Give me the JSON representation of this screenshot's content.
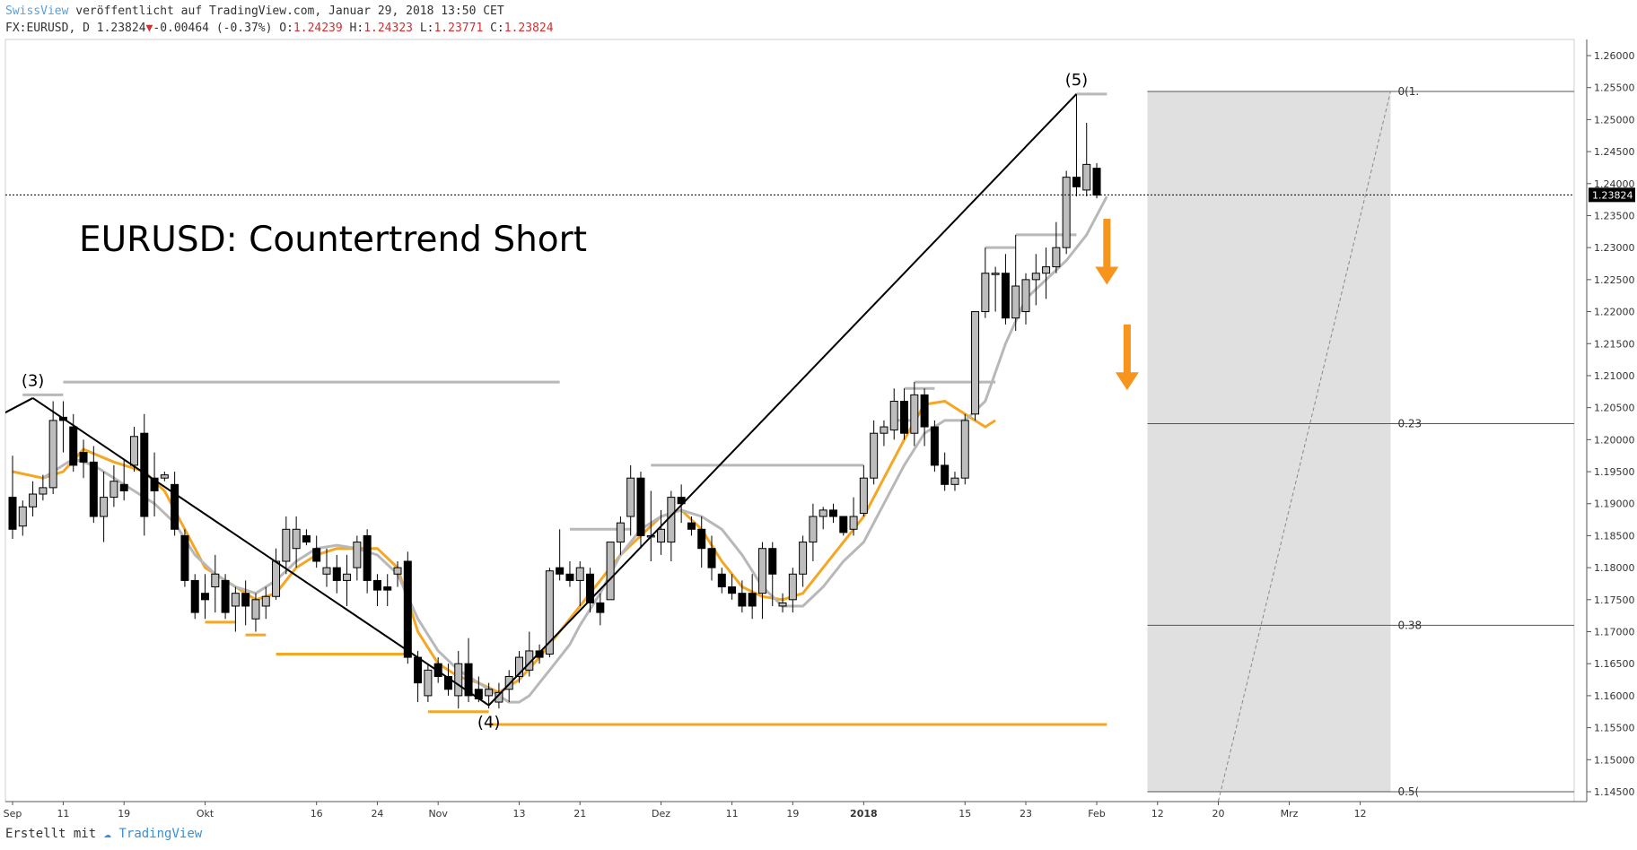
{
  "header": {
    "brand": "SwissView",
    "published": " veröffentlicht auf TradingView.com, Januar 29, 2018 13:50 CET",
    "symbol": "FX:EURUSD, D",
    "last": "1.23824",
    "change": "-0.00464 (-0.37%)",
    "open_label": "O:",
    "open": "1.24239",
    "high_label": "H:",
    "high": "1.24323",
    "low_label": "L:",
    "low": "1.23771",
    "close_label": "C:",
    "close": "1.23824"
  },
  "footer": {
    "created_with": "Erstellt mit",
    "tv_name": "TradingView"
  },
  "colors": {
    "up_candle": "#bdbdbd",
    "down_candle": "#000000",
    "orange_ma": "#f5a623",
    "gray_ma": "#b8b8b8",
    "arrow": "#f7941d",
    "shade": "#e0e0e0"
  },
  "chart_data": {
    "type": "candlestick",
    "title": "EURUSD: Countertrend Short",
    "ylim": [
      1.1435,
      1.261
    ],
    "y_ticks": [
      "1.26000",
      "1.25500",
      "1.25000",
      "1.24500",
      "1.24000",
      "1.23500",
      "1.23000",
      "1.22500",
      "1.22000",
      "1.21500",
      "1.21000",
      "1.20500",
      "1.20000",
      "1.19500",
      "1.19000",
      "1.18500",
      "1.18000",
      "1.17500",
      "1.17000",
      "1.16500",
      "1.16000",
      "1.15500",
      "1.15000",
      "1.14500"
    ],
    "x_labels": [
      {
        "label": "Sep",
        "bar": 0
      },
      {
        "label": "11",
        "bar": 5
      },
      {
        "label": "19",
        "bar": 11
      },
      {
        "label": "Okt",
        "bar": 19
      },
      {
        "label": "16",
        "bar": 30
      },
      {
        "label": "24",
        "bar": 36
      },
      {
        "label": "Nov",
        "bar": 42
      },
      {
        "label": "13",
        "bar": 50
      },
      {
        "label": "21",
        "bar": 56
      },
      {
        "label": "Dez",
        "bar": 64
      },
      {
        "label": "11",
        "bar": 71
      },
      {
        "label": "19",
        "bar": 77
      },
      {
        "label": "2018",
        "bar": 84
      },
      {
        "label": "15",
        "bar": 94
      },
      {
        "label": "23",
        "bar": 100
      },
      {
        "label": "Feb",
        "bar": 107
      },
      {
        "label": "12",
        "bar": 113
      },
      {
        "label": "20",
        "bar": 119
      },
      {
        "label": "Mrz",
        "bar": 126
      },
      {
        "label": "12",
        "bar": 133
      }
    ],
    "ohlc": [
      [
        1.191,
        1.1975,
        1.1845,
        1.186
      ],
      [
        1.1865,
        1.1905,
        1.185,
        1.1895
      ],
      [
        1.1895,
        1.1935,
        1.188,
        1.1915
      ],
      [
        1.1915,
        1.1945,
        1.1905,
        1.1925
      ],
      [
        1.1925,
        1.206,
        1.1915,
        1.203
      ],
      [
        1.2035,
        1.206,
        1.198,
        1.203
      ],
      [
        1.202,
        1.204,
        1.195,
        1.196
      ],
      [
        1.198,
        1.2,
        1.194,
        1.1965
      ],
      [
        1.1965,
        1.199,
        1.187,
        1.188
      ],
      [
        1.188,
        1.195,
        1.184,
        1.191
      ],
      [
        1.191,
        1.196,
        1.1895,
        1.1935
      ],
      [
        1.193,
        1.197,
        1.1905,
        1.192
      ],
      [
        1.196,
        1.202,
        1.195,
        1.2005
      ],
      [
        1.201,
        1.204,
        1.185,
        1.188
      ],
      [
        1.194,
        1.198,
        1.188,
        1.192
      ],
      [
        1.194,
        1.195,
        1.1935,
        1.1945
      ],
      [
        1.193,
        1.195,
        1.185,
        1.186
      ],
      [
        1.185,
        1.186,
        1.177,
        1.178
      ],
      [
        1.178,
        1.179,
        1.172,
        1.173
      ],
      [
        1.176,
        1.179,
        1.172,
        1.175
      ],
      [
        1.177,
        1.182,
        1.173,
        1.179
      ],
      [
        1.178,
        1.179,
        1.172,
        1.173
      ],
      [
        1.174,
        1.177,
        1.17,
        1.176
      ],
      [
        1.176,
        1.178,
        1.171,
        1.174
      ],
      [
        1.172,
        1.176,
        1.17,
        1.175
      ],
      [
        1.174,
        1.177,
        1.172,
        1.1755
      ],
      [
        1.1755,
        1.183,
        1.175,
        1.181
      ],
      [
        1.181,
        1.188,
        1.179,
        1.186
      ],
      [
        1.183,
        1.188,
        1.18,
        1.186
      ],
      [
        1.185,
        1.186,
        1.1835,
        1.184
      ],
      [
        1.183,
        1.185,
        1.18,
        1.181
      ],
      [
        1.179,
        1.183,
        1.177,
        1.18
      ],
      [
        1.18,
        1.182,
        1.176,
        1.178
      ],
      [
        1.178,
        1.182,
        1.174,
        1.179
      ],
      [
        1.18,
        1.185,
        1.178,
        1.184
      ],
      [
        1.185,
        1.186,
        1.176,
        1.178
      ],
      [
        1.178,
        1.179,
        1.174,
        1.1765
      ],
      [
        1.177,
        1.179,
        1.174,
        1.1765
      ],
      [
        1.179,
        1.181,
        1.177,
        1.18
      ],
      [
        1.181,
        1.1825,
        1.165,
        1.166
      ],
      [
        1.166,
        1.167,
        1.159,
        1.162
      ],
      [
        1.16,
        1.165,
        1.159,
        1.164
      ],
      [
        1.165,
        1.166,
        1.162,
        1.163
      ],
      [
        1.163,
        1.165,
        1.16,
        1.161
      ],
      [
        1.16,
        1.167,
        1.158,
        1.165
      ],
      [
        1.165,
        1.169,
        1.159,
        1.16
      ],
      [
        1.161,
        1.163,
        1.159,
        1.1595
      ],
      [
        1.16,
        1.162,
        1.158,
        1.161
      ],
      [
        1.159,
        1.162,
        1.158,
        1.1605
      ],
      [
        1.161,
        1.164,
        1.159,
        1.163
      ],
      [
        1.163,
        1.167,
        1.162,
        1.166
      ],
      [
        1.164,
        1.17,
        1.163,
        1.167
      ],
      [
        1.167,
        1.168,
        1.165,
        1.166
      ],
      [
        1.1665,
        1.18,
        1.166,
        1.1795
      ],
      [
        1.18,
        1.186,
        1.178,
        1.179
      ],
      [
        1.179,
        1.181,
        1.177,
        1.178
      ],
      [
        1.178,
        1.181,
        1.174,
        1.18
      ],
      [
        1.179,
        1.18,
        1.173,
        1.1745
      ],
      [
        1.1745,
        1.176,
        1.171,
        1.173
      ],
      [
        1.175,
        1.184,
        1.175,
        1.184
      ],
      [
        1.184,
        1.188,
        1.182,
        1.187
      ],
      [
        1.188,
        1.196,
        1.185,
        1.194
      ],
      [
        1.194,
        1.195,
        1.183,
        1.185
      ],
      [
        1.185,
        1.192,
        1.181,
        1.185
      ],
      [
        1.184,
        1.189,
        1.182,
        1.186
      ],
      [
        1.184,
        1.192,
        1.181,
        1.191
      ],
      [
        1.191,
        1.193,
        1.187,
        1.19
      ],
      [
        1.187,
        1.188,
        1.185,
        1.186
      ],
      [
        1.186,
        1.188,
        1.18,
        1.183
      ],
      [
        1.183,
        1.185,
        1.178,
        1.18
      ],
      [
        1.179,
        1.18,
        1.176,
        1.177
      ],
      [
        1.177,
        1.179,
        1.175,
        1.176
      ],
      [
        1.176,
        1.178,
        1.173,
        1.174
      ],
      [
        1.176,
        1.179,
        1.172,
        1.174
      ],
      [
        1.176,
        1.184,
        1.172,
        1.183
      ],
      [
        1.183,
        1.184,
        1.174,
        1.179
      ],
      [
        1.174,
        1.176,
        1.173,
        1.1745
      ],
      [
        1.175,
        1.18,
        1.173,
        1.179
      ],
      [
        1.179,
        1.185,
        1.177,
        1.184
      ],
      [
        1.184,
        1.19,
        1.181,
        1.188
      ],
      [
        1.188,
        1.1895,
        1.186,
        1.189
      ],
      [
        1.189,
        1.19,
        1.187,
        1.188
      ],
      [
        1.188,
        1.188,
        1.185,
        1.1855
      ],
      [
        1.186,
        1.191,
        1.185,
        1.188
      ],
      [
        1.1885,
        1.196,
        1.188,
        1.194
      ],
      [
        1.194,
        1.203,
        1.193,
        1.201
      ],
      [
        1.201,
        1.203,
        1.199,
        1.202
      ],
      [
        1.2015,
        1.208,
        1.2,
        1.206
      ],
      [
        1.206,
        1.208,
        1.2,
        1.201
      ],
      [
        1.201,
        1.209,
        1.199,
        1.207
      ],
      [
        1.207,
        1.208,
        1.199,
        1.202
      ],
      [
        1.202,
        1.203,
        1.195,
        1.196
      ],
      [
        1.196,
        1.198,
        1.192,
        1.193
      ],
      [
        1.193,
        1.195,
        1.192,
        1.194
      ],
      [
        1.194,
        1.204,
        1.193,
        1.203
      ],
      [
        1.204,
        1.22,
        1.203,
        1.22
      ],
      [
        1.22,
        1.23,
        1.219,
        1.226
      ],
      [
        1.226,
        1.227,
        1.22,
        1.226
      ],
      [
        1.226,
        1.229,
        1.218,
        1.219
      ],
      [
        1.219,
        1.232,
        1.217,
        1.224
      ],
      [
        1.22,
        1.226,
        1.218,
        1.225
      ],
      [
        1.225,
        1.229,
        1.221,
        1.226
      ],
      [
        1.226,
        1.23,
        1.222,
        1.227
      ],
      [
        1.227,
        1.234,
        1.226,
        1.23
      ],
      [
        1.23,
        1.242,
        1.229,
        1.241
      ],
      [
        1.241,
        1.254,
        1.238,
        1.2395
      ],
      [
        1.239,
        1.2495,
        1.238,
        1.243
      ],
      [
        1.2424,
        1.2432,
        1.2377,
        1.2382
      ]
    ],
    "orange_ma": [
      [
        0,
        1.195
      ],
      [
        3,
        1.194
      ],
      [
        5,
        1.195
      ],
      [
        7,
        1.1985
      ],
      [
        10,
        1.1965
      ],
      [
        13,
        1.195
      ],
      [
        15,
        1.192
      ],
      [
        17,
        1.186
      ],
      [
        19,
        1.18
      ],
      [
        22,
        1.177
      ],
      [
        24,
        1.175
      ],
      [
        26,
        1.176
      ],
      [
        28,
        1.18
      ],
      [
        30,
        1.182
      ],
      [
        32,
        1.183
      ],
      [
        36,
        1.183
      ],
      [
        38,
        1.18
      ],
      [
        40,
        1.17
      ],
      [
        42,
        1.165
      ],
      [
        44,
        1.163
      ],
      [
        46,
        1.162
      ],
      [
        48,
        1.1605
      ],
      [
        50,
        1.1625
      ],
      [
        52,
        1.166
      ],
      [
        54,
        1.17
      ],
      [
        56,
        1.174
      ],
      [
        58,
        1.178
      ],
      [
        60,
        1.182
      ],
      [
        62,
        1.185
      ],
      [
        64,
        1.188
      ],
      [
        66,
        1.189
      ],
      [
        68,
        1.186
      ],
      [
        70,
        1.181
      ],
      [
        72,
        1.177
      ],
      [
        74,
        1.1755
      ],
      [
        76,
        1.175
      ],
      [
        78,
        1.176
      ],
      [
        80,
        1.18
      ],
      [
        82,
        1.184
      ],
      [
        84,
        1.188
      ],
      [
        86,
        1.194
      ],
      [
        88,
        1.2
      ],
      [
        90,
        1.2055
      ],
      [
        92,
        1.206
      ],
      [
        94,
        1.204
      ],
      [
        96,
        1.202
      ],
      [
        97,
        1.203
      ]
    ],
    "gray_ma": [
      [
        3,
        1.194
      ],
      [
        5,
        1.196
      ],
      [
        6,
        1.197
      ],
      [
        8,
        1.196
      ],
      [
        10,
        1.194
      ],
      [
        12,
        1.192
      ],
      [
        14,
        1.19
      ],
      [
        16,
        1.187
      ],
      [
        18,
        1.182
      ],
      [
        20,
        1.179
      ],
      [
        22,
        1.177
      ],
      [
        24,
        1.176
      ],
      [
        26,
        1.178
      ],
      [
        28,
        1.181
      ],
      [
        30,
        1.183
      ],
      [
        32,
        1.1835
      ],
      [
        34,
        1.183
      ],
      [
        36,
        1.182
      ],
      [
        38,
        1.179
      ],
      [
        40,
        1.172
      ],
      [
        42,
        1.167
      ],
      [
        44,
        1.164
      ],
      [
        46,
        1.162
      ],
      [
        48,
        1.16
      ],
      [
        49,
        1.159
      ],
      [
        50,
        1.159
      ],
      [
        51,
        1.16
      ],
      [
        52,
        1.162
      ],
      [
        53,
        1.164
      ],
      [
        54,
        1.166
      ],
      [
        55,
        1.168
      ],
      [
        56,
        1.171
      ],
      [
        58,
        1.176
      ],
      [
        60,
        1.182
      ],
      [
        62,
        1.186
      ],
      [
        64,
        1.188
      ],
      [
        66,
        1.189
      ],
      [
        68,
        1.188
      ],
      [
        70,
        1.186
      ],
      [
        72,
        1.182
      ],
      [
        74,
        1.177
      ],
      [
        76,
        1.174
      ],
      [
        78,
        1.174
      ],
      [
        80,
        1.177
      ],
      [
        82,
        1.181
      ],
      [
        84,
        1.184
      ],
      [
        86,
        1.19
      ],
      [
        88,
        1.196
      ],
      [
        90,
        1.201
      ],
      [
        92,
        1.203
      ],
      [
        94,
        1.203
      ],
      [
        96,
        1.206
      ],
      [
        98,
        1.215
      ],
      [
        100,
        1.222
      ],
      [
        102,
        1.225
      ],
      [
        104,
        1.228
      ],
      [
        106,
        1.232
      ],
      [
        108,
        1.238
      ]
    ],
    "orange_levels": [
      {
        "bar1": 19,
        "bar2": 22,
        "y": 1.1715
      },
      {
        "bar1": 23,
        "bar2": 25,
        "y": 1.1695
      },
      {
        "bar1": 26,
        "bar2": 39,
        "y": 1.1665
      },
      {
        "bar1": 41,
        "bar2": 47,
        "y": 1.1575
      },
      {
        "bar1": 47,
        "bar2": 108,
        "y": 1.1555
      }
    ],
    "gray_levels": [
      {
        "bar1": 1,
        "bar2": 5,
        "y": 1.207
      },
      {
        "bar1": 5,
        "bar2": 54,
        "y": 1.209
      },
      {
        "bar1": 55,
        "bar2": 61,
        "y": 1.186
      },
      {
        "bar1": 63,
        "bar2": 84,
        "y": 1.196
      },
      {
        "bar1": 87,
        "bar2": 89,
        "y": 1.203
      },
      {
        "bar1": 88,
        "bar2": 91,
        "y": 1.208
      },
      {
        "bar1": 89,
        "bar2": 97,
        "y": 1.209
      },
      {
        "bar1": 96,
        "bar2": 99,
        "y": 1.23
      },
      {
        "bar1": 99,
        "bar2": 105,
        "y": 1.232
      },
      {
        "bar1": 105,
        "bar2": 108,
        "y": 1.254
      }
    ],
    "trendlines": [
      {
        "bar1": -1,
        "y1": 1.204,
        "bar2": 2,
        "y2": 1.2065
      },
      {
        "bar1": 2,
        "y1": 1.2065,
        "bar2": 47,
        "y2": 1.1585
      },
      {
        "bar1": 47,
        "y1": 1.1585,
        "bar2": 105,
        "y2": 1.254
      }
    ],
    "wave_labels": [
      {
        "label": "(3)",
        "bar": 2,
        "y": 1.207,
        "pos": "above"
      },
      {
        "label": "(4)",
        "bar": 47,
        "y": 1.1585,
        "pos": "below"
      },
      {
        "label": "(5)",
        "bar": 105,
        "y": 1.254,
        "pos": "above"
      }
    ],
    "current_price": "1.23824",
    "fib": {
      "start_bar": 112,
      "end_bar": 136,
      "levels": [
        {
          "label": "0(1.",
          "y": 1.2544
        },
        {
          "label": "0.23",
          "y": 1.2025
        },
        {
          "label": "0.38",
          "y": 1.171
        },
        {
          "label": "0.5(",
          "y": 1.145
        }
      ],
      "dashed_line": {
        "bar1": 119,
        "y1": 1.1435,
        "bar2": 136,
        "y2": 1.2544
      }
    },
    "arrows": [
      {
        "bar": 108,
        "y_top": 1.2345,
        "y_bottom": 1.2245
      },
      {
        "bar": 110,
        "y_top": 1.218,
        "y_bottom": 1.208
      }
    ]
  }
}
